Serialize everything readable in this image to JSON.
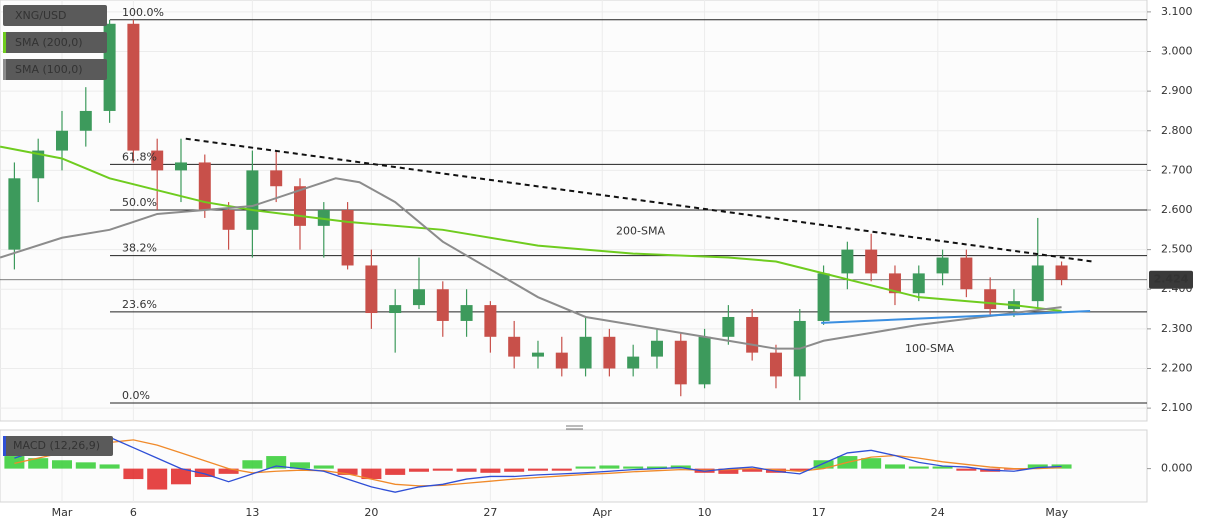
{
  "chart_data": [
    {
      "type": "candlestick",
      "name": "XNG/USD",
      "x": [
        -2,
        -1,
        0,
        1,
        2,
        3,
        4,
        5,
        6,
        7,
        8,
        9,
        10,
        11,
        12,
        13,
        14,
        15,
        16,
        17,
        18,
        19,
        20,
        21,
        22,
        23,
        24,
        25,
        26,
        27,
        28,
        29,
        30,
        31,
        32,
        33,
        34,
        35,
        36,
        37,
        38,
        39,
        40,
        41,
        42
      ],
      "open": [
        2.5,
        2.68,
        2.75,
        2.8,
        2.85,
        3.07,
        2.75,
        2.7,
        2.72,
        2.6,
        2.55,
        2.7,
        2.66,
        2.56,
        2.6,
        2.46,
        2.34,
        2.36,
        2.4,
        2.32,
        2.36,
        2.28,
        2.23,
        2.24,
        2.2,
        2.28,
        2.2,
        2.23,
        2.27,
        2.16,
        2.28,
        2.33,
        2.24,
        2.18,
        2.32,
        2.44,
        2.5,
        2.44,
        2.39,
        2.44,
        2.48,
        2.4,
        2.35,
        2.37,
        2.46
      ],
      "high": [
        2.72,
        2.78,
        2.85,
        2.91,
        3.08,
        3.08,
        2.78,
        2.78,
        2.74,
        2.62,
        2.75,
        2.75,
        2.68,
        2.62,
        2.62,
        2.5,
        2.4,
        2.48,
        2.42,
        2.4,
        2.37,
        2.32,
        2.27,
        2.28,
        2.33,
        2.3,
        2.26,
        2.3,
        2.29,
        2.3,
        2.36,
        2.35,
        2.26,
        2.35,
        2.46,
        2.52,
        2.54,
        2.46,
        2.46,
        2.5,
        2.5,
        2.43,
        2.4,
        2.58,
        2.47
      ],
      "low": [
        2.45,
        2.62,
        2.7,
        2.76,
        2.82,
        2.72,
        2.6,
        2.62,
        2.58,
        2.5,
        2.48,
        2.62,
        2.5,
        2.48,
        2.45,
        2.3,
        2.24,
        2.35,
        2.28,
        2.28,
        2.24,
        2.2,
        2.2,
        2.18,
        2.18,
        2.18,
        2.18,
        2.2,
        2.13,
        2.15,
        2.26,
        2.22,
        2.15,
        2.12,
        2.31,
        2.4,
        2.42,
        2.36,
        2.37,
        2.41,
        2.38,
        2.33,
        2.33,
        2.35,
        2.41
      ],
      "close": [
        2.68,
        2.75,
        2.8,
        2.85,
        3.07,
        2.75,
        2.7,
        2.72,
        2.6,
        2.55,
        2.7,
        2.66,
        2.56,
        2.6,
        2.46,
        2.34,
        2.36,
        2.4,
        2.32,
        2.36,
        2.28,
        2.23,
        2.24,
        2.2,
        2.28,
        2.2,
        2.23,
        2.27,
        2.16,
        2.28,
        2.33,
        2.24,
        2.18,
        2.32,
        2.44,
        2.5,
        2.44,
        2.39,
        2.44,
        2.48,
        2.4,
        2.35,
        2.37,
        2.46,
        2.424
      ],
      "up_color": "#3d9a5c",
      "down_color": "#c8504a",
      "xlim": [
        -2.605,
        45.59
      ],
      "xticks": [
        {
          "value": 0,
          "label": "Mar"
        },
        {
          "value": 3,
          "label": "6"
        },
        {
          "value": 8,
          "label": "13"
        },
        {
          "value": 13,
          "label": "20"
        },
        {
          "value": 18,
          "label": "27"
        },
        {
          "value": 22.7,
          "label": "Apr"
        },
        {
          "value": 27,
          "label": "10"
        },
        {
          "value": 31.8,
          "label": "17"
        },
        {
          "value": 36.8,
          "label": "24"
        },
        {
          "value": 41.8,
          "label": "May"
        }
      ],
      "ylim": [
        2.07,
        3.13
      ],
      "yticks": [
        {
          "value": 2.1,
          "label": "2.100"
        },
        {
          "value": 2.2,
          "label": "2.200"
        },
        {
          "value": 2.3,
          "label": "2.300"
        },
        {
          "value": 2.4,
          "label": "2.400"
        },
        {
          "value": 2.5,
          "label": "2.500"
        },
        {
          "value": 2.6,
          "label": "2.600"
        },
        {
          "value": 2.7,
          "label": "2.700"
        },
        {
          "value": 2.8,
          "label": "2.800"
        },
        {
          "value": 2.9,
          "label": "2.900"
        },
        {
          "value": 3.0,
          "label": "3.000"
        },
        {
          "value": 3.1,
          "label": "3.100"
        }
      ],
      "grid": true,
      "overlays": [
        {
          "name": "SMA (200,0)",
          "color": "#6fcc1f",
          "annotation": "200-SMA",
          "x": [
            -2.6,
            0,
            2,
            4,
            6,
            8,
            12,
            16,
            20,
            24,
            28,
            30,
            32,
            34,
            36,
            38,
            40,
            42
          ],
          "values": [
            2.76,
            2.73,
            2.68,
            2.65,
            2.62,
            2.6,
            2.57,
            2.55,
            2.51,
            2.49,
            2.48,
            2.47,
            2.44,
            2.41,
            2.38,
            2.37,
            2.36,
            2.345
          ]
        },
        {
          "name": "SMA (100,0)",
          "color": "#8c8c8c",
          "annotation": "100-SMA",
          "x": [
            -2.6,
            0,
            2,
            4,
            6,
            8,
            10,
            11.5,
            12.5,
            14,
            16,
            18,
            20,
            22,
            24,
            26,
            28,
            30,
            31,
            32,
            34,
            36,
            38,
            40,
            42
          ],
          "values": [
            2.48,
            2.53,
            2.55,
            2.59,
            2.6,
            2.61,
            2.65,
            2.68,
            2.67,
            2.62,
            2.52,
            2.45,
            2.38,
            2.33,
            2.31,
            2.29,
            2.27,
            2.25,
            2.25,
            2.27,
            2.29,
            2.31,
            2.325,
            2.34,
            2.355
          ]
        }
      ],
      "fib_levels": [
        {
          "value": 3.08,
          "label": "100.0%"
        },
        {
          "value": 2.715,
          "label": "61.8%"
        },
        {
          "value": 2.6,
          "label": "50.0%"
        },
        {
          "value": 2.485,
          "label": "38.2%"
        },
        {
          "value": 2.343,
          "label": "23.6%"
        },
        {
          "value": 2.113,
          "label": "0.0%"
        }
      ],
      "trendlines": [
        {
          "style": "dotted",
          "color": "#111111",
          "x": [
            5.2,
            43.3
          ],
          "values": [
            2.78,
            2.47
          ]
        },
        {
          "style": "solid",
          "color": "#3a8ee0",
          "x": [
            31.9,
            43.2
          ],
          "values": [
            2.315,
            2.345
          ]
        }
      ],
      "last_price": 2.424
    },
    {
      "type": "macd",
      "title": "MACD (12,26,9)",
      "x": [
        -2,
        -1,
        0,
        1,
        2,
        3,
        4,
        5,
        6,
        7,
        8,
        9,
        10,
        11,
        12,
        13,
        14,
        15,
        16,
        17,
        18,
        19,
        20,
        21,
        22,
        23,
        24,
        25,
        26,
        27,
        28,
        29,
        30,
        31,
        32,
        33,
        34,
        35,
        36,
        37,
        38,
        39,
        40,
        41,
        42
      ],
      "histogram": [
        0.024,
        0.02,
        0.016,
        0.012,
        0.008,
        -0.02,
        -0.04,
        -0.03,
        -0.016,
        -0.01,
        0.016,
        0.024,
        0.012,
        0.006,
        -0.012,
        -0.02,
        -0.012,
        -0.006,
        -0.004,
        -0.006,
        -0.008,
        -0.006,
        -0.004,
        -0.004,
        0.004,
        0.006,
        0.004,
        0.004,
        0.006,
        -0.008,
        -0.01,
        -0.006,
        -0.008,
        -0.004,
        0.016,
        0.024,
        0.02,
        0.008,
        0.004,
        0.004,
        -0.004,
        -0.006,
        -0.002,
        0.008,
        0.008
      ],
      "macd": [
        0.02,
        0.035,
        0.045,
        0.05,
        0.06,
        0.04,
        0.02,
        0.0,
        -0.01,
        -0.025,
        -0.01,
        0.005,
        0.0,
        -0.005,
        -0.02,
        -0.035,
        -0.045,
        -0.035,
        -0.03,
        -0.02,
        -0.015,
        -0.015,
        -0.012,
        -0.01,
        -0.008,
        -0.005,
        -0.002,
        0.0,
        0.002,
        -0.005,
        0.0,
        0.003,
        -0.005,
        -0.01,
        0.01,
        0.03,
        0.035,
        0.025,
        0.012,
        0.005,
        0.003,
        -0.003,
        -0.005,
        0.002,
        0.004
      ],
      "signal": [
        0.01,
        0.02,
        0.03,
        0.04,
        0.05,
        0.055,
        0.045,
        0.03,
        0.015,
        0.0,
        -0.008,
        -0.005,
        -0.003,
        -0.004,
        -0.01,
        -0.02,
        -0.03,
        -0.033,
        -0.032,
        -0.028,
        -0.024,
        -0.02,
        -0.017,
        -0.014,
        -0.011,
        -0.009,
        -0.006,
        -0.004,
        -0.002,
        -0.003,
        -0.002,
        0.0,
        -0.002,
        -0.005,
        0.0,
        0.012,
        0.022,
        0.025,
        0.02,
        0.013,
        0.008,
        0.003,
        0.0,
        0.0,
        0.002
      ],
      "macd_color": "#2f4fd6",
      "signal_color": "#f08a2a",
      "pos_color": "#33cc33",
      "neg_color": "#e02424",
      "xlim": [
        -2.605,
        45.59
      ],
      "ylim": [
        -0.06,
        0.07
      ],
      "yticks": [
        {
          "value": 0,
          "label": "0.000"
        }
      ]
    }
  ]
}
